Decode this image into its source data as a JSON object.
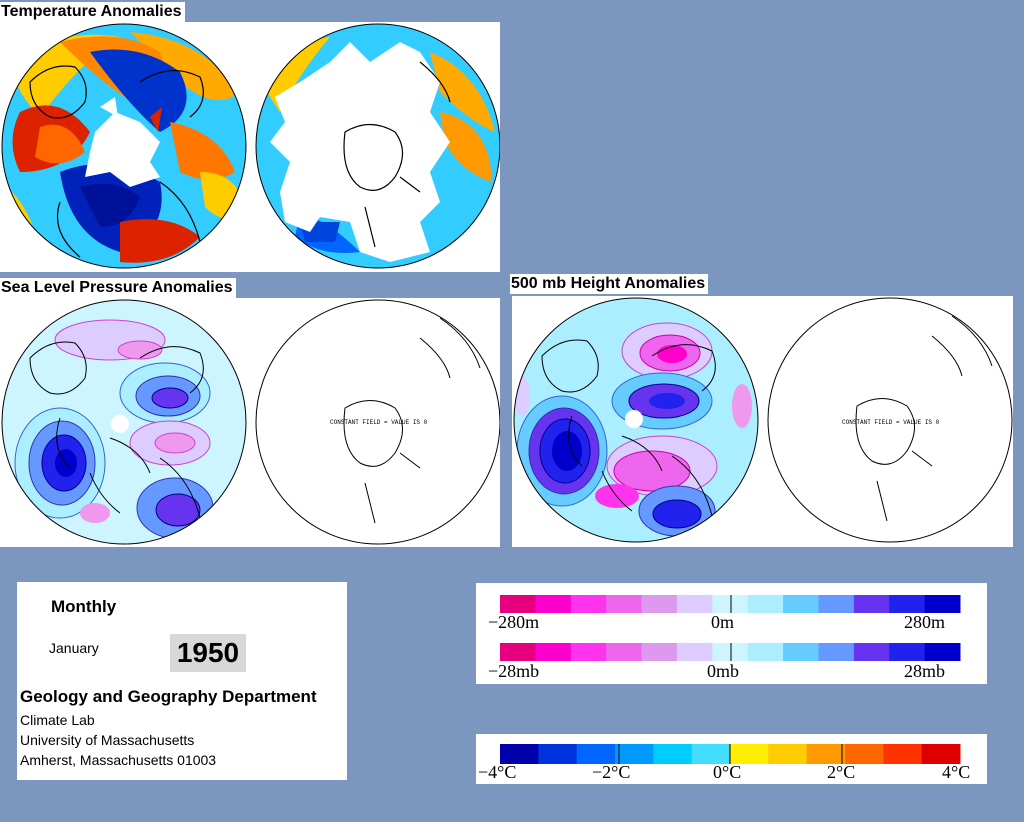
{
  "titles": {
    "temperature": "Temperature Anomalies",
    "slp": "Sea Level Pressure Anomalies",
    "height": "500 mb Height Anomalies"
  },
  "constant_field_text": "CONSTANT FIELD = VALUE IS 0",
  "info": {
    "period": "Monthly",
    "month": "January",
    "year": "1950",
    "department": "Geology and Geography Department",
    "lab": "Climate Lab",
    "university": "University of Massachusetts",
    "address": "Amherst, Massachusetts 01003"
  },
  "legends": {
    "height": {
      "labels": [
        "−280m",
        "0m",
        "280m"
      ]
    },
    "pressure": {
      "labels": [
        "−28mb",
        "0mb",
        "28mb"
      ]
    },
    "temperature": {
      "labels": [
        "−4°C",
        "−2°C",
        "0°C",
        "2°C",
        "4°C"
      ]
    }
  },
  "colors": {
    "background": "#7b96bf",
    "anomaly_scale": [
      "#e6007e",
      "#ff00cc",
      "#ff33ee",
      "#ee66ee",
      "#dd99ee",
      "#ddccff",
      "#ccf5ff",
      "#aaeeff",
      "#66ccff",
      "#6699ff",
      "#6633ee",
      "#2222ee",
      "#0000cc"
    ],
    "temperature_scale": [
      "#0000aa",
      "#0033dd",
      "#0066ff",
      "#0099ff",
      "#00ccff",
      "#44ddff",
      "#ffee00",
      "#ffcc00",
      "#ff9900",
      "#ff6600",
      "#ff3300",
      "#dd0000"
    ]
  }
}
